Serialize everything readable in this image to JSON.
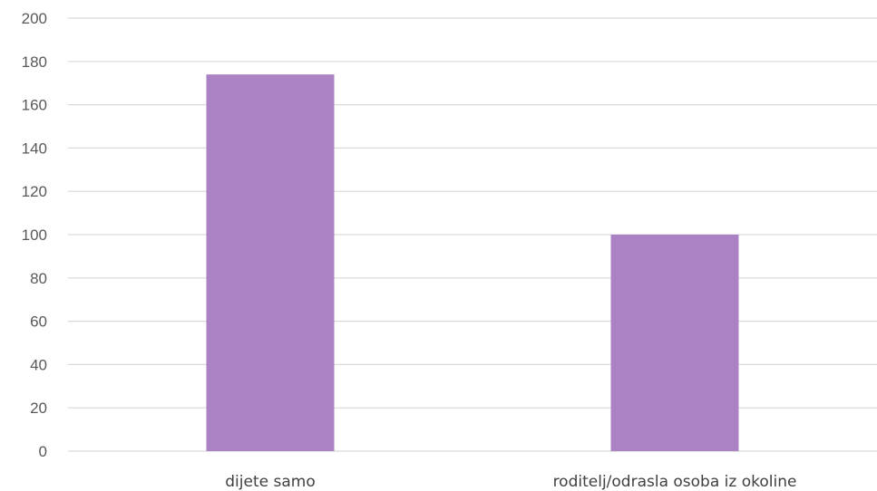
{
  "chart_data": {
    "type": "bar",
    "categories": [
      "dijete samo",
      "roditelj/odrasla osoba iz okoline"
    ],
    "values": [
      174,
      100
    ],
    "title": "",
    "xlabel": "",
    "ylabel": "",
    "ylim": [
      0,
      200
    ],
    "yticks": [
      0,
      20,
      40,
      60,
      80,
      100,
      120,
      140,
      160,
      180,
      200
    ],
    "grid": true,
    "legend": "none",
    "bar_color": "#ab83c5",
    "gridline_color": "#d9d9d9"
  }
}
